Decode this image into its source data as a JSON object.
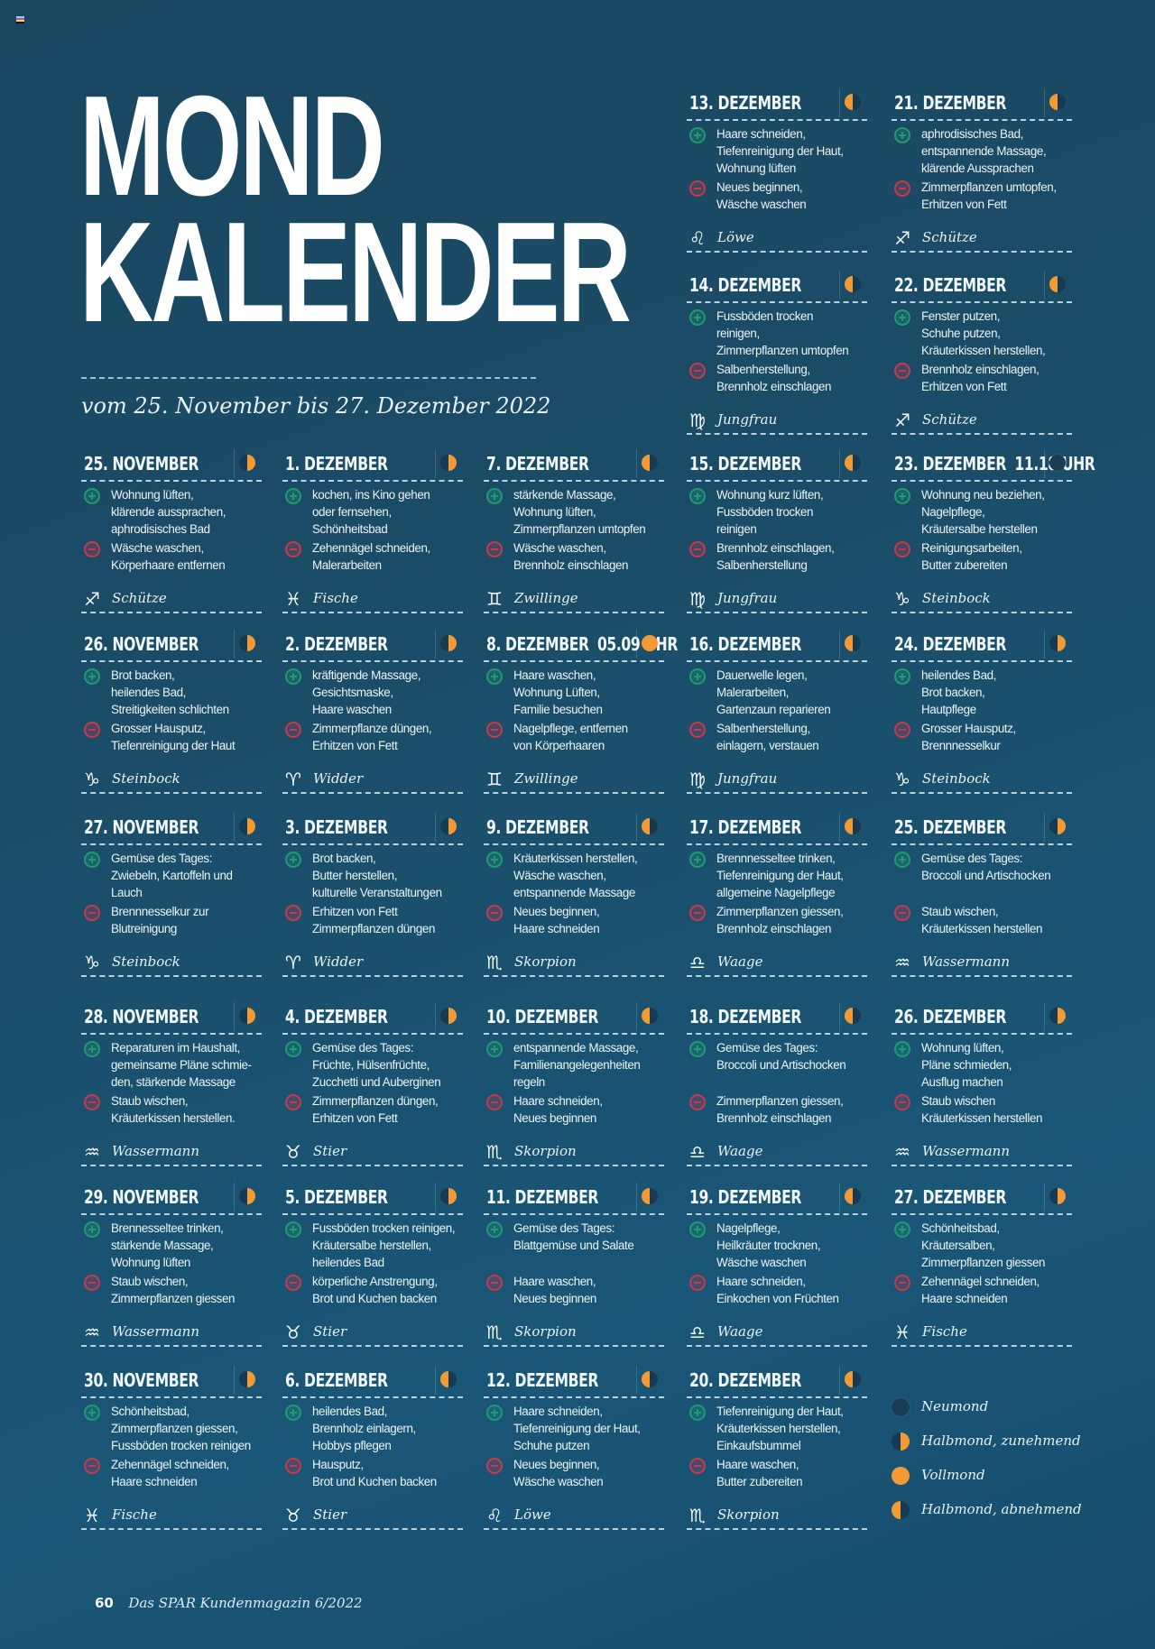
{
  "colors": {
    "accent_orange": "#f39a34",
    "plus_green": "#1f9a72",
    "minus_red": "#c8394d",
    "background": "#1b4d68"
  },
  "header": {
    "title_line1": "MOND",
    "title_line2": "KALENDER",
    "subtitle": "vom 25. November bis 27. Dezember 2022"
  },
  "zodiac_glyphs": {
    "Schütze": "♐",
    "Fische": "♓",
    "Zwillinge": "♊",
    "Jungfrau": "♍",
    "Steinbock": "♑",
    "Widder": "♈",
    "Skorpion": "♏",
    "Waage": "♎",
    "Wassermann": "♒",
    "Stier": "♉",
    "Löwe": "♌"
  },
  "days": [
    {
      "date": "13. DEZEMBER",
      "time": "",
      "moon": "waning",
      "plus": [
        "Haare schneiden,",
        "Tiefenreinigung der Haut,",
        "Wohnung lüften"
      ],
      "minus": [
        "Neues beginnen,",
        "Wäsche waschen"
      ],
      "zodiac": "Löwe",
      "zodiac_glyph": "♌"
    },
    {
      "date": "21. DEZEMBER",
      "time": "",
      "moon": "waning",
      "plus": [
        "aphrodisisches Bad,",
        "entspannende Massage,",
        "klärende Aussprachen"
      ],
      "minus": [
        "Zimmerpflanzen umtopfen,",
        "Erhitzen von Fett"
      ],
      "zodiac": "Schütze",
      "zodiac_glyph": "♐"
    },
    {
      "date": "14. DEZEMBER",
      "time": "",
      "moon": "waning",
      "plus": [
        "Fussböden trocken",
        "reinigen,",
        "Zimmerpflanzen umtopfen"
      ],
      "minus": [
        "Salbenherstellung,",
        "Brennholz einschlagen"
      ],
      "zodiac": "Jungfrau",
      "zodiac_glyph": "♍"
    },
    {
      "date": "22. DEZEMBER",
      "time": "",
      "moon": "waning",
      "plus": [
        "Fenster putzen,",
        "Schuhe putzen,",
        "Kräuterkissen herstellen,"
      ],
      "minus": [
        "Brennholz einschlagen,",
        "Erhitzen von Fett"
      ],
      "zodiac": "Schütze",
      "zodiac_glyph": "♐"
    },
    {
      "date": "25. NOVEMBER",
      "time": "",
      "moon": "waxing",
      "plus": [
        "Wohnung lüften,",
        "klärende aussprachen,",
        "aphrodisisches Bad"
      ],
      "minus": [
        "Wäsche waschen,",
        "Körperhaare entfernen"
      ],
      "zodiac": "Schütze",
      "zodiac_glyph": "♐"
    },
    {
      "date": "1. DEZEMBER",
      "time": "",
      "moon": "waxing",
      "plus": [
        "kochen, ins Kino gehen",
        "oder fernsehen,",
        "Schönheitsbad"
      ],
      "minus": [
        "Zehennägel schneiden,",
        "Malerarbeiten"
      ],
      "zodiac": "Fische",
      "zodiac_glyph": "♓"
    },
    {
      "date": "7. DEZEMBER",
      "time": "",
      "moon": "waning",
      "plus": [
        "stärkende Massage,",
        "Wohnung lüften,",
        "Zimmerpflanzen umtopfen"
      ],
      "minus": [
        "Wäsche waschen,",
        "Brennholz einschlagen"
      ],
      "zodiac": "Zwillinge",
      "zodiac_glyph": "♊"
    },
    {
      "date": "15. DEZEMBER",
      "time": "",
      "moon": "waning",
      "plus": [
        "Wohnung kurz lüften,",
        "Fussböden trocken",
        "reinigen"
      ],
      "minus": [
        "Brennholz einschlagen,",
        "Salbenherstellung"
      ],
      "zodiac": "Jungfrau",
      "zodiac_glyph": "♍"
    },
    {
      "date": "23. DEZEMBER",
      "time": "11.18 UHR",
      "moon": "new",
      "plus": [
        "Wohnung neu beziehen,",
        "Nagelpflege,",
        "Kräutersalbe herstellen"
      ],
      "minus": [
        "Reinigungsarbeiten,",
        "Butter zubereiten"
      ],
      "zodiac": "Steinbock",
      "zodiac_glyph": "♑"
    },
    {
      "date": "26. NOVEMBER",
      "time": "",
      "moon": "waxing",
      "plus": [
        "Brot backen,",
        "heilendes Bad,",
        "Streitigkeiten schlichten"
      ],
      "minus": [
        "Grosser Hausputz,",
        "Tiefenreinigung der Haut"
      ],
      "zodiac": "Steinbock",
      "zodiac_glyph": "♑"
    },
    {
      "date": "2. DEZEMBER",
      "time": "",
      "moon": "waxing",
      "plus": [
        "kräftigende Massage,",
        "Gesichtsmaske,",
        "Haare waschen"
      ],
      "minus": [
        "Zimmerpflanze düngen,",
        "Erhitzen von Fett"
      ],
      "zodiac": "Widder",
      "zodiac_glyph": "♈"
    },
    {
      "date": "8. DEZEMBER",
      "time": "05.09 UHR",
      "moon": "full",
      "plus": [
        "Haare waschen,",
        "Wohnung Lüften,",
        "Familie besuchen"
      ],
      "minus": [
        "Nagelpflege, entfernen",
        "von Körperhaaren"
      ],
      "zodiac": "Zwillinge",
      "zodiac_glyph": "♊"
    },
    {
      "date": "16. DEZEMBER",
      "time": "",
      "moon": "waning",
      "plus": [
        "Dauerwelle legen,",
        "Malerarbeiten,",
        "Gartenzaun reparieren"
      ],
      "minus": [
        "Salbenherstellung,",
        "einlagern, verstauen"
      ],
      "zodiac": "Jungfrau",
      "zodiac_glyph": "♍"
    },
    {
      "date": "24. DEZEMBER",
      "time": "",
      "moon": "waxing",
      "plus": [
        "heilendes Bad,",
        "Brot backen,",
        "Hautpflege"
      ],
      "minus": [
        "Grosser Hausputz,",
        "Brennnesselkur"
      ],
      "zodiac": "Steinbock",
      "zodiac_glyph": "♑"
    },
    {
      "date": "27. NOVEMBER",
      "time": "",
      "moon": "waxing",
      "plus": [
        "Gemüse des Tages:",
        "Zwiebeln, Kartoffeln und",
        "Lauch"
      ],
      "minus": [
        "Brennnesselkur zur",
        "Blutreinigung"
      ],
      "zodiac": "Steinbock",
      "zodiac_glyph": "♑"
    },
    {
      "date": "3. DEZEMBER",
      "time": "",
      "moon": "waxing",
      "plus": [
        "Brot backen,",
        "Butter herstellen,",
        "kulturelle Veranstaltungen"
      ],
      "minus": [
        "Erhitzen von Fett",
        "Zimmerpflanzen düngen"
      ],
      "zodiac": "Widder",
      "zodiac_glyph": "♈"
    },
    {
      "date": "9. DEZEMBER",
      "time": "",
      "moon": "waning",
      "plus": [
        "Kräuterkissen herstellen,",
        "Wäsche waschen,",
        "entspannende Massage"
      ],
      "minus": [
        "Neues beginnen,",
        "Haare schneiden"
      ],
      "zodiac": "Skorpion",
      "zodiac_glyph": "♏"
    },
    {
      "date": "17. DEZEMBER",
      "time": "",
      "moon": "waning",
      "plus": [
        "Brennnesseltee trinken,",
        "Tiefenreinigung der Haut,",
        "allgemeine Nagelpflege"
      ],
      "minus": [
        "Zimmerpflanzen giessen,",
        "Brennholz einschlagen"
      ],
      "zodiac": "Waage",
      "zodiac_glyph": "♎"
    },
    {
      "date": "25. DEZEMBER",
      "time": "",
      "moon": "waxing",
      "plus": [
        "Gemüse des Tages:",
        "Broccoli und Artischocken"
      ],
      "minus": [
        "Staub wischen,",
        "Kräuterkissen herstellen"
      ],
      "zodiac": "Wassermann",
      "zodiac_glyph": "♒"
    },
    {
      "date": "28. NOVEMBER",
      "time": "",
      "moon": "waxing",
      "plus": [
        "Reparaturen im Haushalt,",
        "gemeinsame Pläne schmie-",
        "den, stärkende Massage"
      ],
      "minus": [
        "Staub wischen,",
        "Kräuterkissen herstellen."
      ],
      "zodiac": "Wassermann",
      "zodiac_glyph": "♒"
    },
    {
      "date": "4. DEZEMBER",
      "time": "",
      "moon": "waxing",
      "plus": [
        "Gemüse des Tages:",
        "Früchte, Hülsenfrüchte,",
        "Zucchetti und Auberginen"
      ],
      "minus": [
        "Zimmerpflanzen düngen,",
        "Erhitzen von Fett"
      ],
      "zodiac": "Stier",
      "zodiac_glyph": "♉"
    },
    {
      "date": "10. DEZEMBER",
      "time": "",
      "moon": "waning",
      "plus": [
        "entspannende Massage,",
        "Familienangelegenheiten",
        "regeln"
      ],
      "minus": [
        "Haare schneiden,",
        "Neues beginnen"
      ],
      "zodiac": "Skorpion",
      "zodiac_glyph": "♏"
    },
    {
      "date": "18. DEZEMBER",
      "time": "",
      "moon": "waning",
      "plus": [
        "Gemüse des Tages:",
        "Broccoli und Artischocken"
      ],
      "minus": [
        "Zimmerpflanzen giessen,",
        "Brennholz einschlagen"
      ],
      "zodiac": "Waage",
      "zodiac_glyph": "♎"
    },
    {
      "date": "26. DEZEMBER",
      "time": "",
      "moon": "waxing",
      "plus": [
        "Wohnung lüften,",
        "Pläne schmieden,",
        "Ausflug machen"
      ],
      "minus": [
        "Staub wischen",
        "Kräuterkissen herstellen"
      ],
      "zodiac": "Wassermann",
      "zodiac_glyph": "♒"
    },
    {
      "date": "29. NOVEMBER",
      "time": "",
      "moon": "waxing",
      "plus": [
        "Brennesseltee trinken,",
        "stärkende Massage,",
        "Wohnung lüften"
      ],
      "minus": [
        "Staub wischen,",
        "Zimmerpflanzen giessen"
      ],
      "zodiac": "Wassermann",
      "zodiac_glyph": "♒"
    },
    {
      "date": "5. DEZEMBER",
      "time": "",
      "moon": "waxing",
      "plus": [
        "Fussböden trocken reinigen,",
        "Kräutersalbe herstellen,",
        "heilendes Bad"
      ],
      "minus": [
        "körperliche Anstrengung,",
        "Brot und Kuchen backen"
      ],
      "zodiac": "Stier",
      "zodiac_glyph": "♉"
    },
    {
      "date": "11. DEZEMBER",
      "time": "",
      "moon": "waning",
      "plus": [
        "Gemüse des Tages:",
        "Blattgemüse und Salate"
      ],
      "minus": [
        "Haare waschen,",
        "Neues beginnen"
      ],
      "zodiac": "Skorpion",
      "zodiac_glyph": "♏"
    },
    {
      "date": "19. DEZEMBER",
      "time": "",
      "moon": "waning",
      "plus": [
        "Nagelpflege,",
        "Heilkräuter trocknen,",
        "Wäsche waschen"
      ],
      "minus": [
        "Haare schneiden,",
        "Einkochen von Früchten"
      ],
      "zodiac": "Waage",
      "zodiac_glyph": "♎"
    },
    {
      "date": "27. DEZEMBER",
      "time": "",
      "moon": "waxing",
      "plus": [
        "Schönheitsbad,",
        "Kräutersalben,",
        "Zimmerpflanzen giessen"
      ],
      "minus": [
        "Zehennägel schneiden,",
        "Haare schneiden"
      ],
      "zodiac": "Fische",
      "zodiac_glyph": "♓"
    },
    {
      "date": "30. NOVEMBER",
      "time": "",
      "moon": "waxing",
      "plus": [
        "Schönheitsbad,",
        "Zimmerpflanzen giessen,",
        "Fussböden trocken reinigen"
      ],
      "minus": [
        "Zehennägel schneiden,",
        "Haare schneiden"
      ],
      "zodiac": "Fische",
      "zodiac_glyph": "♓"
    },
    {
      "date": "6. DEZEMBER",
      "time": "",
      "moon": "waning",
      "plus": [
        "heilendes Bad,",
        "Brennholz einlagern,",
        "Hobbys pflegen"
      ],
      "minus": [
        "Hausputz,",
        "Brot und Kuchen backen"
      ],
      "zodiac": "Stier",
      "zodiac_glyph": "♉"
    },
    {
      "date": "12. DEZEMBER",
      "time": "",
      "moon": "waning",
      "plus": [
        "Haare schneiden,",
        "Tiefenreinigung der Haut,",
        "Schuhe putzen"
      ],
      "minus": [
        "Neues beginnen,",
        "Wäsche waschen"
      ],
      "zodiac": "Löwe",
      "zodiac_glyph": "♌"
    },
    {
      "date": "20. DEZEMBER",
      "time": "",
      "moon": "waning",
      "plus": [
        "Tiefenreinigung der Haut,",
        "Kräuterkissen herstellen,",
        "Einkaufsbummel"
      ],
      "minus": [
        "Haare waschen,",
        "Butter zubereiten"
      ],
      "zodiac": "Skorpion",
      "zodiac_glyph": "♏"
    }
  ],
  "legend": [
    {
      "moon": "new",
      "label": "Neumond"
    },
    {
      "moon": "waxing",
      "label": "Halbmond, zunehmend"
    },
    {
      "moon": "full",
      "label": "Vollmond"
    },
    {
      "moon": "waning",
      "label": "Halbmond, abnehmend"
    }
  ],
  "footer": {
    "page_number": "60",
    "publication": "Das SPAR Kundenmagazin 6/2022"
  }
}
